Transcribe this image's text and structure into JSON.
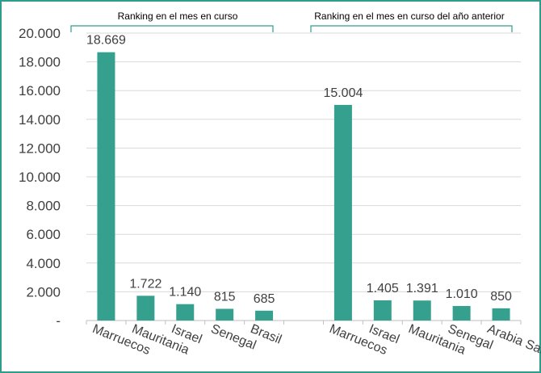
{
  "chart_data": {
    "type": "bar",
    "color": "#35a08e",
    "accent": "#2e9e8c",
    "ylim": [
      0,
      20000
    ],
    "yticks": [
      {
        "value": 0,
        "label": "-"
      },
      {
        "value": 2000,
        "label": "2.000"
      },
      {
        "value": 4000,
        "label": "4.000"
      },
      {
        "value": 6000,
        "label": "6.000"
      },
      {
        "value": 8000,
        "label": "8.000"
      },
      {
        "value": 10000,
        "label": "10.000"
      },
      {
        "value": 12000,
        "label": "12.000"
      },
      {
        "value": 14000,
        "label": "14.000"
      },
      {
        "value": 16000,
        "label": "16.000"
      },
      {
        "value": 18000,
        "label": "18.000"
      },
      {
        "value": 20000,
        "label": "20.000"
      }
    ],
    "grid": true,
    "groups": [
      {
        "title": "Ranking en el mes en curso",
        "bars": [
          {
            "category": "Marruecos",
            "value": 18669,
            "label": "18.669"
          },
          {
            "category": "Mauritania",
            "value": 1722,
            "label": "1.722"
          },
          {
            "category": "Israel",
            "value": 1140,
            "label": "1.140"
          },
          {
            "category": "Senegal",
            "value": 815,
            "label": "815"
          },
          {
            "category": "Brasil",
            "value": 685,
            "label": "685"
          }
        ]
      },
      {
        "title": "Ranking en el mes en curso del año anterior",
        "bars": [
          {
            "category": "Marruecos",
            "value": 15004,
            "label": "15.004"
          },
          {
            "category": "Israel",
            "value": 1405,
            "label": "1.405"
          },
          {
            "category": "Mauritania",
            "value": 1391,
            "label": "1.391"
          },
          {
            "category": "Senegal",
            "value": 1010,
            "label": "1.010"
          },
          {
            "category": "Arabia Saudí",
            "value": 850,
            "label": "850"
          }
        ]
      }
    ]
  }
}
